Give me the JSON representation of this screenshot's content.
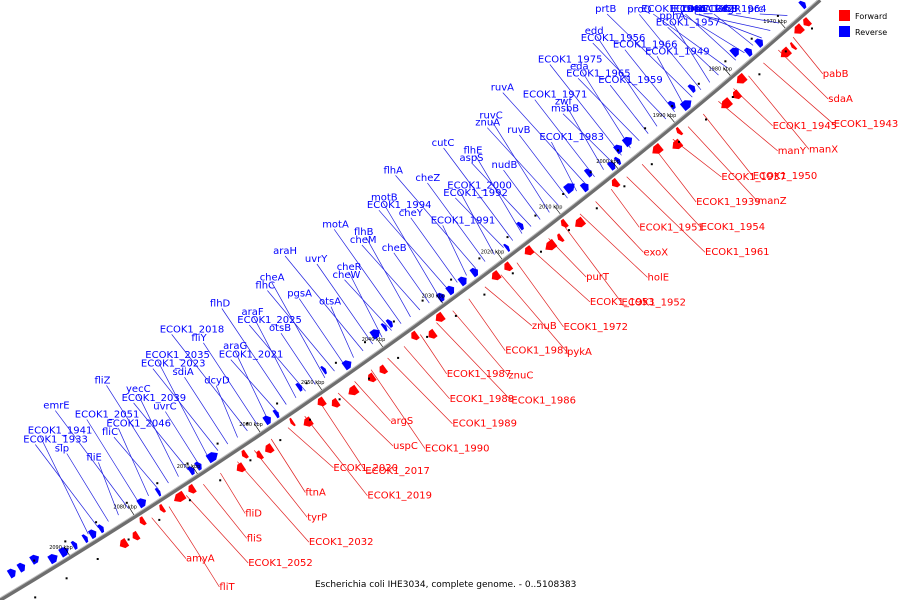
{
  "legend": {
    "forward_label": "Forward",
    "reverse_label": "Reverse",
    "forward_color": "#ff0000",
    "reverse_color": "#0000ff"
  },
  "caption": "Escherichia coli IHE3034, complete genome. - 0..5108383",
  "colors": {
    "forward": "#ff0000",
    "reverse": "#0000ff",
    "backbone": "#6e6e6e",
    "leader_forward": "#e02020",
    "leader_reverse": "#2020e0"
  },
  "ticks": [
    "1970 kbp",
    "1980 kbp",
    "1990 kbp",
    "2000 kbp",
    "2010 kbp",
    "2020 kbp",
    "2030 kbp",
    "2040 kbp",
    "2050 kbp",
    "2060 kbp",
    "2070 kbp",
    "2080 kbp",
    "2090 kbp"
  ],
  "reverse_labels": [
    "prc",
    "kdgR",
    "cspC",
    "rrmA",
    "ECOK1_1964",
    "ECOK1_1942",
    "ECOK1_1958",
    "ECOK1_1946",
    "ECOK1_1957",
    "pphA",
    "proQ",
    "prtB",
    "ECOK1_1949",
    "ECOK1_1966",
    "ECOK1_1956",
    "edd",
    "ECOK1_1959",
    "ECOK1_1965",
    "eda",
    "ECOK1_1975",
    "msbB",
    "zwf",
    "ECOK1_1971",
    "ruvA",
    "ECOK1_1983",
    "ruvB",
    "znuA",
    "ruvC",
    "nudB",
    "aspS",
    "flhE",
    "cutC",
    "ECOK1_1992",
    "ECOK1_2000",
    "cheZ",
    "flhA",
    "ECOK1_1991",
    "cheY",
    "ECOK1_1994",
    "motB",
    "cheB",
    "cheM",
    "flhB",
    "motA",
    "cheW",
    "cheR",
    "uvrY",
    "araH",
    "otsA",
    "pgsA",
    "flhC",
    "cheA",
    "otsB",
    "ECOK1_2025",
    "araF",
    "flhD",
    "ECOK1_2021",
    "araG",
    "fliY",
    "ECOK1_2018",
    "dcyD",
    "sdiA",
    "ECOK1_2023",
    "ECOK1_2035",
    "uvrC",
    "ECOK1_2039",
    "yecC",
    "fliZ",
    "fliC",
    "ECOK1_2046",
    "ECOK1_2051",
    "emrE",
    "fliE",
    "slp",
    "ECOK1_1933",
    "ECOK1_1941"
  ],
  "forward_labels": [
    "pabB",
    "sdaA",
    "ECOK1_1943",
    "manX",
    "ECOK1_1945",
    "manY",
    "ECOK1_1950",
    "manZ",
    "ECOK1_1937",
    "ECOK1_1939",
    "ECOK1_1954",
    "ECOK1_1961",
    "ECOK1_1951",
    "exoX",
    "holE",
    "ECOK1_1952",
    "purT",
    "ECOK1_1953",
    "ECOK1_1972",
    "pykA",
    "znuB",
    "ECOK1_1981",
    "znuC",
    "ECOK1_1986",
    "ECOK1_1987",
    "ECOK1_1988",
    "ECOK1_1989",
    "ECOK1_1990",
    "argS",
    "uspC",
    "ECOK1_2017",
    "ECOK1_2019",
    "ECOK1_2020",
    "ftnA",
    "tyrP",
    "ECOK1_2032",
    "fliD",
    "fliS",
    "ECOK1_2052",
    "fliT",
    "amyA"
  ]
}
